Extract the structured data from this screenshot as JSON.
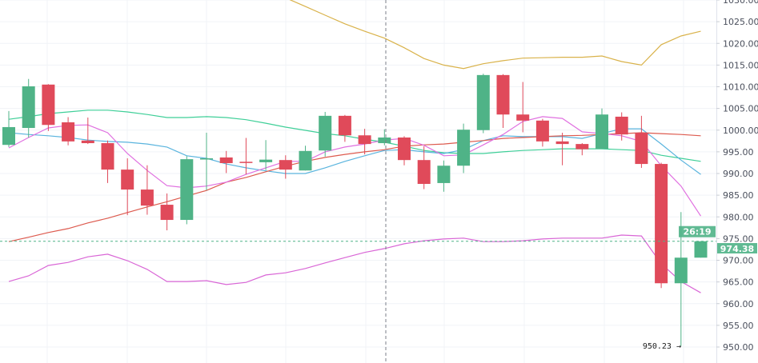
{
  "chart_data": {
    "type": "candlestick",
    "title": "",
    "xlabel": "",
    "ylabel": "",
    "ylim": [
      948,
      1030.5
    ],
    "grid": true,
    "y_ticks": [
      "950.00",
      "955.00",
      "960.00",
      "965.00",
      "970.00",
      "975.00",
      "980.00",
      "985.00",
      "990.00",
      "995.00",
      "1000.00",
      "1005.00",
      "1010.00",
      "1015.00",
      "1020.00",
      "1025.00",
      "1030.00"
    ],
    "colors": {
      "up": "#4fb387",
      "down": "#e04a5a"
    },
    "candles": [
      {
        "o": 996.6,
        "h": 1004.4,
        "l": 996.1,
        "c": 1000.7
      },
      {
        "o": 1000.5,
        "h": 1011.8,
        "l": 998.3,
        "c": 1010.1
      },
      {
        "o": 1010.5,
        "h": 1010.6,
        "l": 999.8,
        "c": 1001.2
      },
      {
        "o": 1001.8,
        "h": 1003.0,
        "l": 996.5,
        "c": 997.4
      },
      {
        "o": 997.6,
        "h": 1002.9,
        "l": 996.8,
        "c": 997.0
      },
      {
        "o": 997.0,
        "h": 997.6,
        "l": 987.8,
        "c": 990.9
      },
      {
        "o": 990.9,
        "h": 993.5,
        "l": 980.4,
        "c": 986.3
      },
      {
        "o": 986.3,
        "h": 991.9,
        "l": 980.5,
        "c": 982.6
      },
      {
        "o": 982.8,
        "h": 985.4,
        "l": 976.9,
        "c": 979.3
      },
      {
        "o": 979.3,
        "h": 994.0,
        "l": 978.3,
        "c": 993.3
      },
      {
        "o": 993.3,
        "h": 999.4,
        "l": 986.1,
        "c": 993.5
      },
      {
        "o": 993.7,
        "h": 995.2,
        "l": 990.1,
        "c": 992.4
      },
      {
        "o": 992.7,
        "h": 998.2,
        "l": 989.8,
        "c": 992.6
      },
      {
        "o": 992.6,
        "h": 997.7,
        "l": 990.8,
        "c": 993.2
      },
      {
        "o": 993.1,
        "h": 994.2,
        "l": 988.8,
        "c": 990.9
      },
      {
        "o": 990.7,
        "h": 996.4,
        "l": 990.7,
        "c": 995.2
      },
      {
        "o": 995.3,
        "h": 1004.2,
        "l": 993.9,
        "c": 1003.3
      },
      {
        "o": 1003.3,
        "h": 1003.5,
        "l": 997.3,
        "c": 998.8
      },
      {
        "o": 998.8,
        "h": 1000.3,
        "l": 994.4,
        "c": 996.8
      },
      {
        "o": 997.0,
        "h": 1000.2,
        "l": 996.5,
        "c": 998.3
      },
      {
        "o": 998.3,
        "h": 998.6,
        "l": 991.9,
        "c": 993.1
      },
      {
        "o": 993.1,
        "h": 996.3,
        "l": 986.4,
        "c": 987.6
      },
      {
        "o": 987.8,
        "h": 993.0,
        "l": 985.8,
        "c": 991.8
      },
      {
        "o": 991.8,
        "h": 1001.5,
        "l": 990.1,
        "c": 1000.1
      },
      {
        "o": 1000.0,
        "h": 1013.0,
        "l": 999.3,
        "c": 1012.7
      },
      {
        "o": 1012.7,
        "h": 1012.9,
        "l": 1000.5,
        "c": 1003.6
      },
      {
        "o": 1003.6,
        "h": 1011.1,
        "l": 999.5,
        "c": 1002.2
      },
      {
        "o": 1002.2,
        "h": 1002.6,
        "l": 996.2,
        "c": 997.4
      },
      {
        "o": 997.4,
        "h": 999.4,
        "l": 991.9,
        "c": 996.8
      },
      {
        "o": 996.8,
        "h": 997.0,
        "l": 994.2,
        "c": 995.6
      },
      {
        "o": 995.7,
        "h": 1005.0,
        "l": 995.7,
        "c": 1003.6
      },
      {
        "o": 1003.1,
        "h": 1004.1,
        "l": 997.6,
        "c": 999.0
      },
      {
        "o": 999.4,
        "h": 1003.3,
        "l": 991.3,
        "c": 992.2
      },
      {
        "o": 992.2,
        "h": 992.5,
        "l": 963.6,
        "c": 964.7
      },
      {
        "o": 964.7,
        "h": 981.1,
        "l": 950.23,
        "c": 970.6
      },
      {
        "o": 970.6,
        "h": 974.4,
        "l": 970.6,
        "c": 974.38
      }
    ],
    "lines": [
      {
        "color": "#d9b24a",
        "values": [
          null,
          null,
          null,
          null,
          null,
          null,
          null,
          null,
          null,
          null,
          null,
          null,
          null,
          null,
          1030.5,
          1028.5,
          1026.5,
          1024.5,
          1022.8,
          1021.2,
          1019.0,
          1016.5,
          1015.0,
          1014.2,
          1015.3,
          1016.0,
          1016.6,
          1016.7,
          1016.8,
          1016.8,
          1017.1,
          1015.8,
          1015.0,
          1019.7,
          1021.7,
          1022.8
        ]
      },
      {
        "color": "#d966d6",
        "values": [
          965.1,
          966.4,
          968.8,
          969.5,
          970.8,
          971.4,
          969.9,
          967.9,
          965.1,
          965.1,
          965.3,
          964.4,
          964.9,
          966.6,
          967.1,
          968.1,
          969.4,
          970.6,
          971.8,
          972.7,
          973.8,
          974.5,
          974.9,
          975.1,
          974.3,
          974.3,
          974.5,
          974.9,
          975.1,
          975.1,
          975.1,
          975.8,
          975.6,
          969.2,
          965.1,
          962.5
        ]
      },
      {
        "color": "#3fcf98",
        "values": [
          1002.5,
          1003.1,
          1003.8,
          1004.2,
          1004.6,
          1004.6,
          1004.2,
          1003.6,
          1002.9,
          1002.9,
          1003.1,
          1002.9,
          1002.4,
          1001.6,
          1000.7,
          999.95,
          999.2,
          998.7,
          997.9,
          997.2,
          996.3,
          995.3,
          994.8,
          994.6,
          994.6,
          995.0,
          995.3,
          995.5,
          995.7,
          995.7,
          995.7,
          995.5,
          995.3,
          994.2,
          993.5,
          992.8
        ]
      },
      {
        "color": "#5ab4de",
        "values": [
          999.4,
          999.0,
          998.7,
          998.3,
          997.7,
          997.4,
          997.2,
          996.8,
          996.1,
          994.1,
          993.5,
          992.2,
          991.3,
          990.6,
          990.0,
          990.0,
          991.3,
          992.8,
          994.1,
          995.3,
          995.5,
          995.0,
          994.6,
          995.5,
          997.6,
          998.7,
          998.5,
          998.5,
          998.5,
          998.1,
          999.2,
          1000.3,
          1000.3,
          996.8,
          993.1,
          989.8
        ]
      },
      {
        "color": "#dd5a4e",
        "values": [
          974.3,
          975.3,
          976.4,
          977.3,
          978.6,
          979.7,
          981.0,
          982.3,
          983.5,
          984.8,
          986.1,
          988.0,
          989.1,
          990.4,
          991.7,
          992.8,
          993.7,
          994.4,
          995.0,
          995.5,
          996.3,
          996.6,
          996.8,
          997.2,
          997.6,
          998.1,
          998.3,
          998.5,
          998.7,
          998.8,
          999.0,
          999.2,
          999.4,
          999.2,
          999.0,
          998.7
        ]
      },
      {
        "color": "#e070e0",
        "values": [
          995.9,
          998.3,
          1000.5,
          1001.1,
          1001.2,
          999.4,
          994.6,
          990.7,
          987.2,
          986.7,
          987.1,
          988.0,
          989.8,
          991.3,
          992.8,
          992.8,
          995.0,
          996.1,
          996.8,
          997.7,
          998.1,
          996.5,
          994.1,
          994.3,
          996.6,
          999.0,
          1002.0,
          1003.1,
          1002.7,
          999.6,
          999.2,
          998.7,
          997.4,
          991.8,
          987.1,
          980.2
        ]
      }
    ],
    "current_price": 974.38,
    "current_price_label": "974.38",
    "countdown_label": "26:19",
    "low_annotation": "950.23 →"
  }
}
